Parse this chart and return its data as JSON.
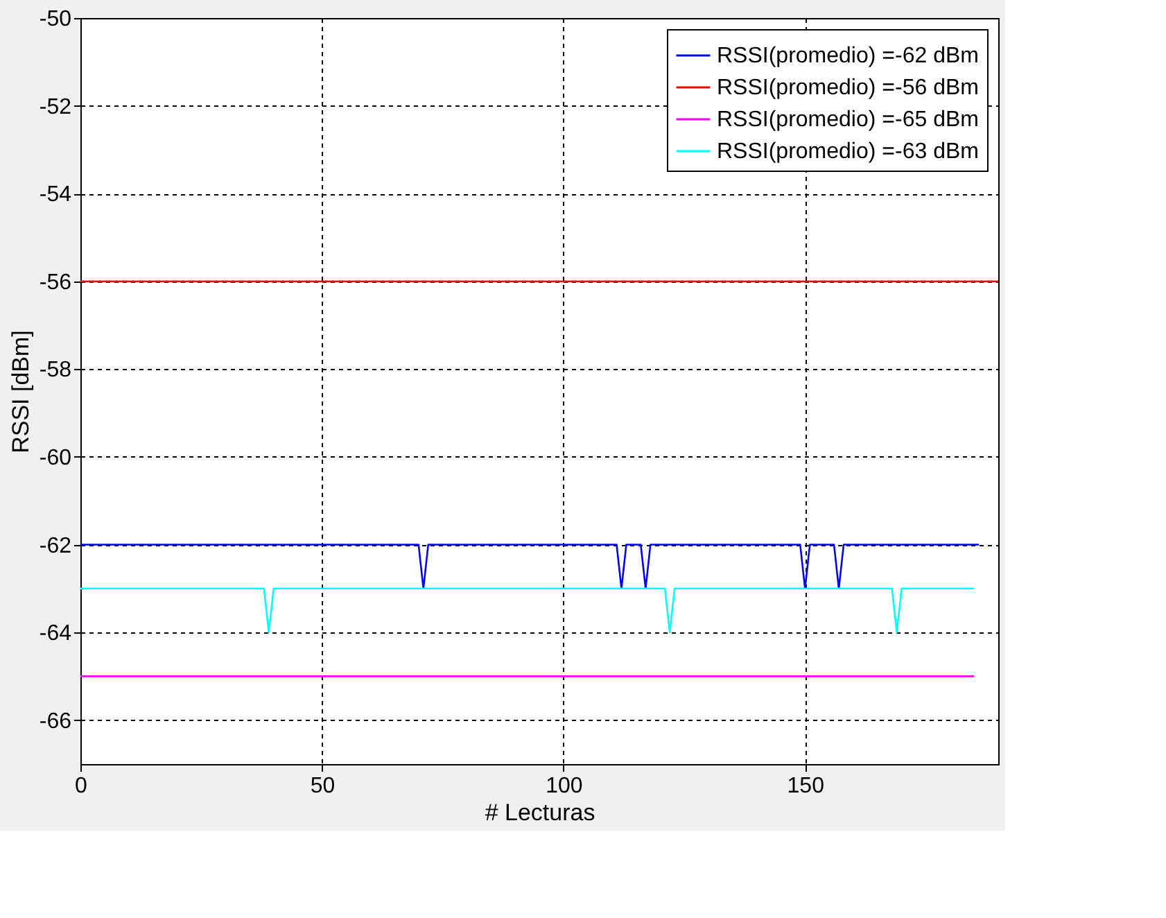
{
  "chart_data": {
    "type": "line",
    "xlabel": "# Lecturas",
    "ylabel": "RSSI [dBm]",
    "xlim": [
      0,
      190
    ],
    "xticks": [
      0,
      50,
      100,
      150
    ],
    "ylim": [
      -67,
      -50
    ],
    "yticks": [
      -66,
      -64,
      -62,
      -60,
      -58,
      -56,
      -54,
      -52,
      -50
    ],
    "grid": true,
    "legend": "top right",
    "line_style": "solid",
    "marker": "none",
    "series": [
      {
        "name": "RSSI(promedio) =-62 dBm",
        "color": "#0000ff",
        "x": [
          0,
          70,
          71,
          72,
          111,
          112,
          113,
          116,
          117,
          118,
          149,
          150,
          151,
          156,
          157,
          158,
          186
        ],
        "values": [
          -62,
          -62,
          -63,
          -62,
          -62,
          -63,
          -62,
          -62,
          -63,
          -62,
          -62,
          -63,
          -62,
          -62,
          -63,
          -62,
          -62
        ]
      },
      {
        "name": "RSSI(promedio) =-56 dBm",
        "color": "#ff0000",
        "x": [
          0,
          190
        ],
        "values": [
          -56,
          -56
        ]
      },
      {
        "name": "RSSI(promedio) =-65 dBm",
        "color": "#ff00ff",
        "x": [
          0,
          185
        ],
        "values": [
          -65,
          -65
        ]
      },
      {
        "name": "RSSI(promedio) =-63 dBm",
        "color": "#00ffff",
        "x": [
          0,
          38,
          39,
          40,
          121,
          122,
          123,
          168,
          169,
          170,
          185
        ],
        "values": [
          -63,
          -63,
          -64,
          -63,
          -63,
          -64,
          -63,
          -63,
          -64,
          -63,
          -63
        ]
      }
    ]
  }
}
